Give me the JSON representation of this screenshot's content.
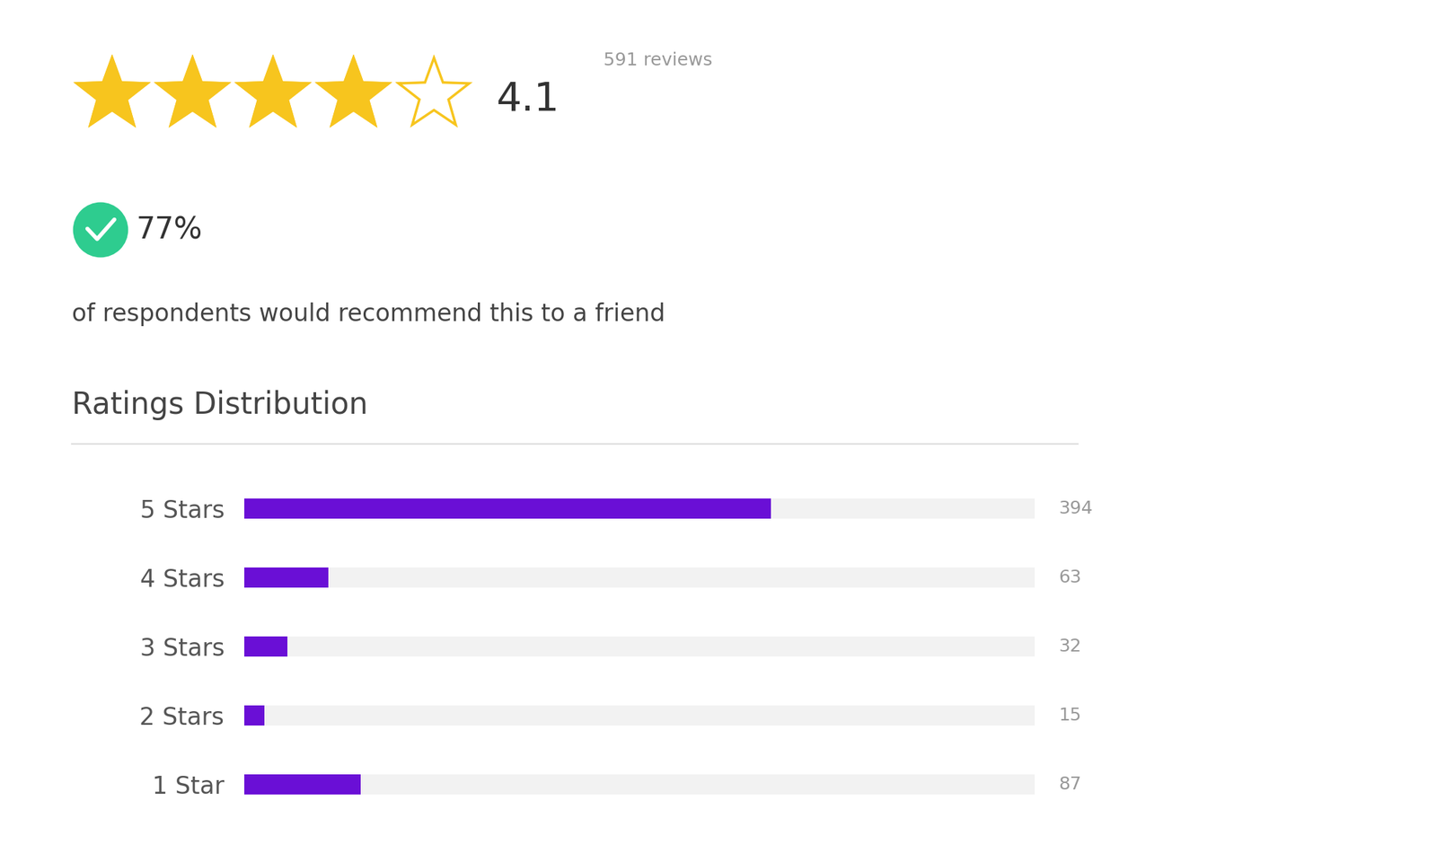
{
  "header": {
    "rating": 4.1,
    "reviews": "591 reviews",
    "recommend_percent": "77%",
    "recommend_text": "of respondents would recommend this to a friend"
  },
  "chart_data": {
    "type": "bar",
    "orientation": "horizontal",
    "title": "Ratings Distribution",
    "categories": [
      "5 Stars",
      "4 Stars",
      "3 Stars",
      "2 Stars",
      "1 Star"
    ],
    "values": [
      394,
      63,
      32,
      15,
      87
    ],
    "color": "#6a0fd6",
    "xlim": [
      0,
      591
    ],
    "data_labels": true,
    "tick_labels": "y"
  }
}
